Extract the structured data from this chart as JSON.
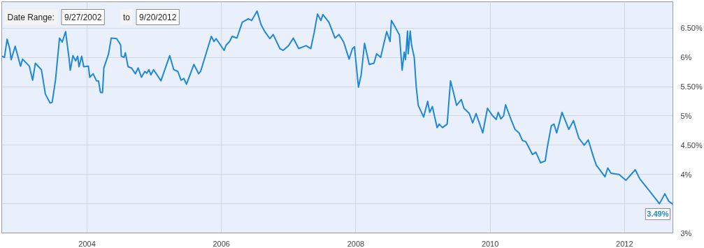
{
  "chart_data": {
    "type": "line",
    "x": [
      2002.73,
      2002.77,
      2002.81,
      2002.85,
      2002.87,
      2002.93,
      2003.01,
      2003.04,
      2003.14,
      2003.19,
      2003.23,
      2003.32,
      2003.38,
      2003.45,
      2003.48,
      2003.53,
      2003.59,
      2003.63,
      2003.68,
      2003.73,
      2003.75,
      2003.79,
      2003.83,
      2003.86,
      2003.88,
      2003.92,
      2003.95,
      2004.02,
      2004.04,
      2004.09,
      2004.14,
      2004.17,
      2004.2,
      2004.23,
      2004.25,
      2004.32,
      2004.36,
      2004.44,
      2004.5,
      2004.51,
      2004.55,
      2004.57,
      2004.61,
      2004.66,
      2004.72,
      2004.76,
      2004.81,
      2004.86,
      2004.89,
      2004.92,
      2004.95,
      2004.99,
      2005.1,
      2005.23,
      2005.29,
      2005.35,
      2005.4,
      2005.44,
      2005.48,
      2005.59,
      2005.66,
      2005.69,
      2005.85,
      2005.89,
      2005.92,
      2006.04,
      2006.07,
      2006.12,
      2006.16,
      2006.23,
      2006.31,
      2006.4,
      2006.45,
      2006.53,
      2006.59,
      2006.64,
      2006.72,
      2006.77,
      2006.87,
      2006.92,
      2007.0,
      2007.07,
      2007.15,
      2007.26,
      2007.33,
      2007.38,
      2007.43,
      2007.48,
      2007.51,
      2007.6,
      2007.69,
      2007.75,
      2007.82,
      2007.9,
      2007.95,
      2007.98,
      2008.04,
      2008.08,
      2008.13,
      2008.2,
      2008.27,
      2008.31,
      2008.37,
      2008.46,
      2008.51,
      2008.53,
      2008.59,
      2008.65,
      2008.69,
      2008.72,
      2008.74,
      2008.77,
      2008.78,
      2008.81,
      2008.83,
      2008.87,
      2008.9,
      2008.93,
      2009.01,
      2009.07,
      2009.1,
      2009.14,
      2009.21,
      2009.24,
      2009.29,
      2009.36,
      2009.41,
      2009.45,
      2009.5,
      2009.57,
      2009.61,
      2009.69,
      2009.74,
      2009.79,
      2009.89,
      2009.96,
      2010.03,
      2010.09,
      2010.12,
      2010.16,
      2010.2,
      2010.23,
      2010.31,
      2010.37,
      2010.43,
      2010.48,
      2010.53,
      2010.63,
      2010.68,
      2010.75,
      2010.82,
      2010.85,
      2010.91,
      2010.95,
      2010.99,
      2011.07,
      2011.17,
      2011.24,
      2011.32,
      2011.4,
      2011.46,
      2011.54,
      2011.58,
      2011.71,
      2011.75,
      2011.8,
      2011.92,
      2012.02,
      2012.16,
      2012.23,
      2012.37,
      2012.52,
      2012.6,
      2012.66,
      2012.72
    ],
    "series": [
      {
        "color": "#1f88d6",
        "values": [
          6.02,
          6.0,
          6.31,
          6.14,
          5.96,
          6.19,
          5.85,
          5.97,
          5.85,
          5.61,
          5.9,
          5.79,
          5.37,
          5.22,
          5.23,
          5.61,
          6.33,
          6.26,
          6.44,
          6.0,
          5.78,
          6.03,
          5.94,
          6.02,
          5.84,
          6.02,
          5.84,
          5.85,
          5.66,
          5.72,
          5.6,
          5.6,
          5.4,
          5.4,
          5.82,
          6.06,
          6.33,
          6.32,
          6.21,
          6.02,
          6.0,
          6.08,
          5.84,
          5.82,
          5.72,
          5.82,
          5.66,
          5.76,
          5.73,
          5.79,
          5.7,
          5.79,
          5.6,
          6.03,
          5.79,
          5.76,
          5.61,
          5.64,
          5.54,
          5.88,
          5.72,
          5.76,
          6.36,
          6.27,
          6.32,
          6.12,
          6.21,
          6.27,
          6.36,
          6.33,
          6.6,
          6.66,
          6.63,
          6.79,
          6.56,
          6.45,
          6.32,
          6.39,
          6.15,
          6.12,
          6.2,
          6.33,
          6.15,
          6.2,
          6.15,
          6.42,
          6.74,
          6.63,
          6.73,
          6.6,
          6.33,
          6.39,
          6.26,
          5.97,
          6.15,
          6.18,
          5.49,
          5.7,
          6.24,
          5.88,
          5.9,
          6.06,
          6.0,
          6.44,
          6.27,
          6.63,
          6.51,
          6.38,
          5.78,
          6.09,
          5.96,
          6.45,
          6.06,
          6.45,
          6.21,
          6.0,
          5.49,
          5.18,
          4.98,
          5.25,
          5.06,
          5.16,
          4.8,
          4.86,
          4.8,
          4.86,
          5.6,
          5.42,
          5.18,
          5.28,
          5.13,
          5.04,
          4.88,
          5.04,
          4.71,
          5.13,
          5.01,
          4.94,
          5.06,
          4.95,
          5.0,
          5.19,
          4.94,
          4.77,
          4.71,
          4.58,
          4.56,
          4.34,
          4.38,
          4.2,
          4.23,
          4.46,
          4.83,
          4.86,
          4.71,
          5.06,
          4.77,
          4.92,
          4.62,
          4.5,
          4.59,
          4.29,
          4.16,
          3.96,
          4.11,
          4.02,
          4.0,
          3.9,
          4.08,
          3.92,
          3.72,
          3.5,
          3.67,
          3.54,
          3.49
        ]
      }
    ],
    "xlim": [
      2002.73,
      2012.72
    ],
    "xticks": [
      2004,
      2006,
      2008,
      2010,
      2012
    ],
    "ylim": [
      3,
      6.95
    ],
    "yticks": [
      {
        "value": 3,
        "label": "3%"
      },
      {
        "value": 3.5,
        "label": null
      },
      {
        "value": 4,
        "label": "4%"
      },
      {
        "value": 4.5,
        "label": "4.50%"
      },
      {
        "value": 5,
        "label": "5%"
      },
      {
        "value": 5.5,
        "label": "5.50%"
      },
      {
        "value": 6,
        "label": "6%"
      },
      {
        "value": 6.5,
        "label": "6.50%"
      }
    ],
    "grid": true,
    "annotations": [
      "Date Range:",
      "9/27/2002",
      "to",
      "9/20/2012",
      {
        "text": "3.49%",
        "x": 2012.72,
        "y": 3.49
      }
    ]
  }
}
